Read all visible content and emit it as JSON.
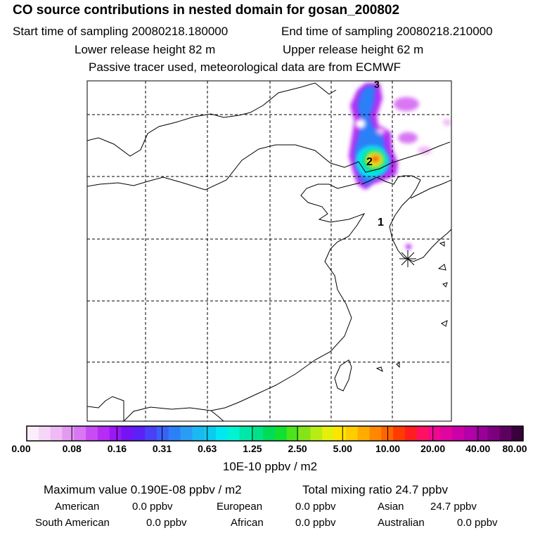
{
  "header": {
    "title": "CO  source contributions in nested domain for gosan_200802",
    "start_label": "Start time of sampling 20080218.180000",
    "end_label": "End time of sampling 20080218.210000",
    "lower_release": "Lower release height   82 m",
    "upper_release": "Upper release height   62 m",
    "note": "Passive tracer used, meteorological data are from ECMWF"
  },
  "map": {
    "markers": [
      "1",
      "2",
      "3"
    ],
    "receptor_symbol": "star-marker"
  },
  "colorbar": {
    "colors": [
      "#fbeefb",
      "#f6d6f8",
      "#efbaf5",
      "#e39af1",
      "#d876f3",
      "#c84cf3",
      "#b52df5",
      "#9918f5",
      "#7414f5",
      "#5a22f7",
      "#4a40f7",
      "#3a60f8",
      "#2c80f7",
      "#2a9cf4",
      "#1cb8f2",
      "#0ccaf0",
      "#00e8f0",
      "#00f4d2",
      "#00e8a8",
      "#00e28a",
      "#00dc56",
      "#12e030",
      "#4ee41c",
      "#84e418",
      "#b8ec14",
      "#e4f00c",
      "#ffe400",
      "#ffcc00",
      "#ffac00",
      "#ff8800",
      "#ff6400",
      "#ff3c00",
      "#ff1e20",
      "#ff1060",
      "#f00890",
      "#e004a0",
      "#cc00a8",
      "#b400a8",
      "#9a0098",
      "#7c007e",
      "#5e0060",
      "#3a003c"
    ],
    "labels": [
      "0.00",
      "0.08",
      "0.16",
      "0.31",
      "0.63",
      "1.25",
      "2.50",
      "5.00",
      "10.00",
      "20.00",
      "40.00",
      "80.00"
    ],
    "unit": "10E-10 ppbv / m2"
  },
  "summary": {
    "max_label": "Maximum value  0.190E-08 ppbv / m2",
    "total_label": "Total mixing ratio       24.7 ppbv",
    "regions": [
      {
        "name": "American",
        "value": "0.0 ppbv"
      },
      {
        "name": "European",
        "value": "0.0 ppbv"
      },
      {
        "name": "Asian",
        "value": "24.7 ppbv"
      },
      {
        "name": "South American",
        "value": "0.0 ppbv"
      },
      {
        "name": "African",
        "value": "0.0 ppbv"
      },
      {
        "name": "Australian",
        "value": "0.0 ppbv"
      }
    ]
  }
}
